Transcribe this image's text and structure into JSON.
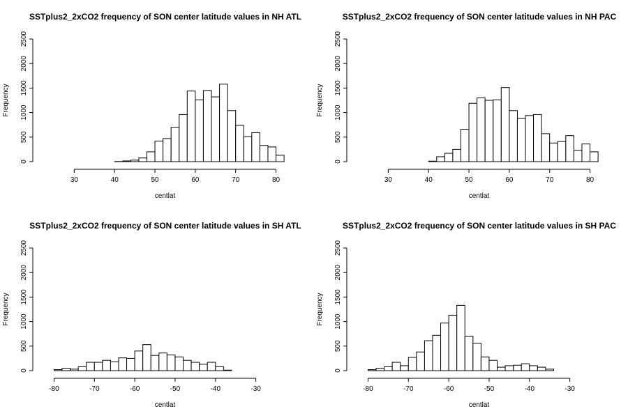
{
  "chart_data": [
    {
      "type": "bar",
      "title": "SSTplus2_2xCO2 frequency of SON center latitude values in NH ATL",
      "xlabel": "centlat",
      "ylabel": "Frequency",
      "xlim": [
        22.5,
        82.5
      ],
      "ylim": [
        0,
        2500
      ],
      "xticks": [
        "30",
        "40",
        "50",
        "60",
        "70",
        "80"
      ],
      "yticks": [
        "0",
        "500",
        "1000",
        "1500",
        "2000",
        "2500"
      ],
      "bin_width": 2,
      "bin_edges_start": 24,
      "values": [
        0,
        0,
        0,
        0,
        0,
        0,
        0,
        0,
        3,
        15,
        30,
        75,
        200,
        420,
        470,
        700,
        960,
        1440,
        1260,
        1450,
        1320,
        1580,
        1040,
        740,
        510,
        590,
        330,
        300,
        130
      ]
    },
    {
      "type": "bar",
      "title": "SSTplus2_2xCO2 frequency of SON center latitude values in NH PAC",
      "xlabel": "centlat",
      "ylabel": "Frequency",
      "xlim": [
        22.5,
        82.5
      ],
      "ylim": [
        0,
        2500
      ],
      "xticks": [
        "30",
        "40",
        "50",
        "60",
        "70",
        "80"
      ],
      "yticks": [
        "0",
        "500",
        "1000",
        "1500",
        "2000",
        "2500"
      ],
      "bin_width": 2,
      "bin_edges_start": 24,
      "values": [
        0,
        0,
        0,
        0,
        0,
        0,
        0,
        0,
        10,
        100,
        170,
        250,
        660,
        1190,
        1300,
        1250,
        1260,
        1510,
        1040,
        880,
        940,
        960,
        570,
        380,
        410,
        530,
        230,
        360,
        200
      ]
    },
    {
      "type": "bar",
      "title": "SSTplus2_2xCO2 frequency of SON center latitude values in SH ATL",
      "xlabel": "centlat",
      "ylabel": "Frequency",
      "xlim": [
        -82.5,
        -22.5
      ],
      "ylim": [
        0,
        2500
      ],
      "xticks": [
        "-80",
        "-70",
        "-60",
        "-50",
        "-40",
        "-30"
      ],
      "yticks": [
        "0",
        "500",
        "1000",
        "1500",
        "2000",
        "2500"
      ],
      "bin_width": 2,
      "bin_edges_start": -80,
      "values": [
        20,
        50,
        30,
        80,
        170,
        170,
        210,
        180,
        260,
        250,
        400,
        530,
        310,
        360,
        320,
        280,
        210,
        170,
        130,
        170,
        80,
        10,
        0,
        0,
        0,
        0,
        0
      ]
    },
    {
      "type": "bar",
      "title": "SSTplus2_2xCO2 frequency of SON center latitude values in SH PAC",
      "xlabel": "centlat",
      "ylabel": "Frequency",
      "xlim": [
        -82.5,
        -22.5
      ],
      "ylim": [
        0,
        2500
      ],
      "xticks": [
        "-80",
        "-70",
        "-60",
        "-50",
        "-40",
        "-30"
      ],
      "yticks": [
        "0",
        "500",
        "1000",
        "1500",
        "2000",
        "2500"
      ],
      "bin_width": 2,
      "bin_edges_start": -80,
      "values": [
        20,
        50,
        80,
        170,
        100,
        270,
        380,
        610,
        720,
        970,
        1130,
        1330,
        700,
        560,
        280,
        210,
        70,
        100,
        110,
        140,
        100,
        70,
        30,
        0,
        0,
        0,
        0
      ]
    }
  ]
}
